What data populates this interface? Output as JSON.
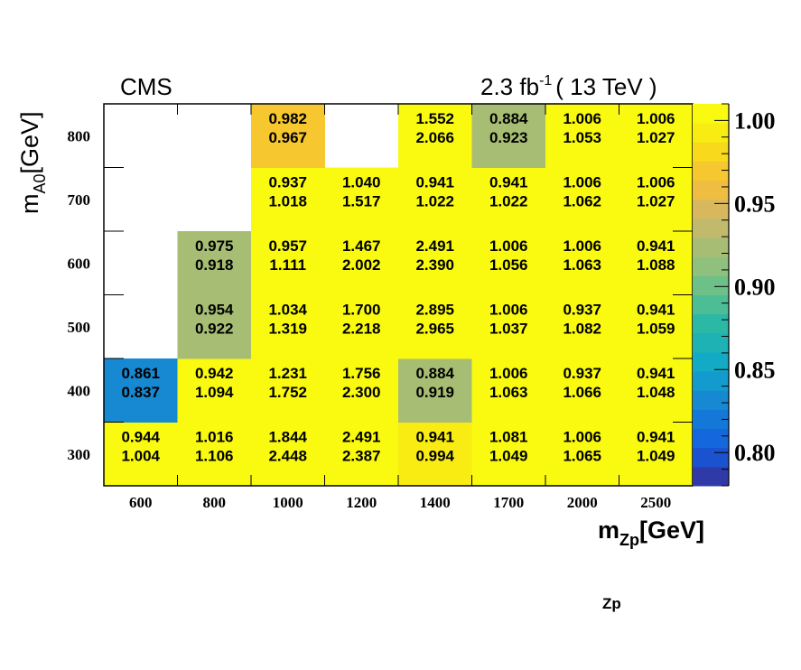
{
  "header": {
    "experiment": "CMS",
    "lumi_prefix": "2.3 fb",
    "lumi_exp": "-1",
    "lumi_suffix": "( 13 TeV )"
  },
  "chart_data": {
    "type": "heatmap",
    "xlabel_main": "m",
    "xlabel_sub": "Zp",
    "xlabel_tail": "[GeV]",
    "ylabel_main": "m",
    "ylabel_sub": "A0",
    "ylabel_tail": "[GeV]",
    "x_categories": [
      "600",
      "800",
      "1000",
      "1200",
      "1400",
      "1700",
      "2000",
      "2500"
    ],
    "y_categories": [
      "300",
      "400",
      "500",
      "600",
      "700",
      "800"
    ],
    "zlim": [
      0.78,
      1.01
    ],
    "colorbar_ticks": [
      "0.80",
      "0.85",
      "0.90",
      "0.95",
      "1.00"
    ],
    "cells": [
      {
        "x": "600",
        "y": "300",
        "top": "0.944",
        "bottom": "1.004",
        "z": 1.004
      },
      {
        "x": "800",
        "y": "300",
        "top": "1.016",
        "bottom": "1.106",
        "z": 1.106
      },
      {
        "x": "1000",
        "y": "300",
        "top": "1.844",
        "bottom": "2.448",
        "z": 2.448
      },
      {
        "x": "1200",
        "y": "300",
        "top": "2.491",
        "bottom": "2.387",
        "z": 2.387
      },
      {
        "x": "1400",
        "y": "300",
        "top": "0.941",
        "bottom": "0.994",
        "z": 0.994
      },
      {
        "x": "1700",
        "y": "300",
        "top": "1.081",
        "bottom": "1.049",
        "z": 1.049
      },
      {
        "x": "2000",
        "y": "300",
        "top": "1.006",
        "bottom": "1.065",
        "z": 1.065
      },
      {
        "x": "2500",
        "y": "300",
        "top": "0.941",
        "bottom": "1.049",
        "z": 1.049
      },
      {
        "x": "600",
        "y": "400",
        "top": "0.861",
        "bottom": "0.837",
        "z": 0.837
      },
      {
        "x": "800",
        "y": "400",
        "top": "0.942",
        "bottom": "1.094",
        "z": 1.094
      },
      {
        "x": "1000",
        "y": "400",
        "top": "1.231",
        "bottom": "1.752",
        "z": 1.752
      },
      {
        "x": "1200",
        "y": "400",
        "top": "1.756",
        "bottom": "2.300",
        "z": 2.3
      },
      {
        "x": "1400",
        "y": "400",
        "top": "0.884",
        "bottom": "0.919",
        "z": 0.919
      },
      {
        "x": "1700",
        "y": "400",
        "top": "1.006",
        "bottom": "1.063",
        "z": 1.063
      },
      {
        "x": "2000",
        "y": "400",
        "top": "0.937",
        "bottom": "1.066",
        "z": 1.066
      },
      {
        "x": "2500",
        "y": "400",
        "top": "0.941",
        "bottom": "1.048",
        "z": 1.048
      },
      {
        "x": "800",
        "y": "500",
        "top": "0.954",
        "bottom": "0.922",
        "z": 0.922
      },
      {
        "x": "1000",
        "y": "500",
        "top": "1.034",
        "bottom": "1.319",
        "z": 1.319
      },
      {
        "x": "1200",
        "y": "500",
        "top": "1.700",
        "bottom": "2.218",
        "z": 2.218
      },
      {
        "x": "1400",
        "y": "500",
        "top": "2.895",
        "bottom": "2.965",
        "z": 2.965
      },
      {
        "x": "1700",
        "y": "500",
        "top": "1.006",
        "bottom": "1.037",
        "z": 1.037
      },
      {
        "x": "2000",
        "y": "500",
        "top": "0.937",
        "bottom": "1.082",
        "z": 1.082
      },
      {
        "x": "2500",
        "y": "500",
        "top": "0.941",
        "bottom": "1.059",
        "z": 1.059
      },
      {
        "x": "800",
        "y": "600",
        "top": "0.975",
        "bottom": "0.918",
        "z": 0.918
      },
      {
        "x": "1000",
        "y": "600",
        "top": "0.957",
        "bottom": "1.111",
        "z": 1.111
      },
      {
        "x": "1200",
        "y": "600",
        "top": "1.467",
        "bottom": "2.002",
        "z": 2.002
      },
      {
        "x": "1400",
        "y": "600",
        "top": "2.491",
        "bottom": "2.390",
        "z": 2.39
      },
      {
        "x": "1700",
        "y": "600",
        "top": "1.006",
        "bottom": "1.056",
        "z": 1.056
      },
      {
        "x": "2000",
        "y": "600",
        "top": "1.006",
        "bottom": "1.063",
        "z": 1.063
      },
      {
        "x": "2500",
        "y": "600",
        "top": "0.941",
        "bottom": "1.088",
        "z": 1.088
      },
      {
        "x": "1000",
        "y": "700",
        "top": "0.937",
        "bottom": "1.018",
        "z": 1.018
      },
      {
        "x": "1200",
        "y": "700",
        "top": "1.040",
        "bottom": "1.517",
        "z": 1.517
      },
      {
        "x": "1400",
        "y": "700",
        "top": "0.941",
        "bottom": "1.022",
        "z": 1.022
      },
      {
        "x": "1700",
        "y": "700",
        "top": "0.941",
        "bottom": "1.022",
        "z": 1.022
      },
      {
        "x": "2000",
        "y": "700",
        "top": "1.006",
        "bottom": "1.062",
        "z": 1.062
      },
      {
        "x": "2500",
        "y": "700",
        "top": "1.006",
        "bottom": "1.027",
        "z": 1.027
      },
      {
        "x": "1000",
        "y": "800",
        "top": "0.982",
        "bottom": "0.967",
        "z": 0.967
      },
      {
        "x": "1400",
        "y": "800",
        "top": "1.552",
        "bottom": "2.066",
        "z": 2.066
      },
      {
        "x": "1700",
        "y": "800",
        "top": "0.884",
        "bottom": "0.923",
        "z": 0.923
      },
      {
        "x": "2000",
        "y": "800",
        "top": "1.006",
        "bottom": "1.053",
        "z": 1.053
      },
      {
        "x": "2500",
        "y": "800",
        "top": "1.006",
        "bottom": "1.027",
        "z": 1.027
      }
    ],
    "palette": [
      "#2f3aa8",
      "#1b52cf",
      "#1467dc",
      "#1478d8",
      "#1689d2",
      "#129bcc",
      "#12aac4",
      "#1eb2b4",
      "#2bb8a5",
      "#4dbd96",
      "#6ec089",
      "#8fc07e",
      "#a8bd74",
      "#c1b96b",
      "#d8b85f",
      "#eebd42",
      "#f6c72e",
      "#f9d91b",
      "#f8ec13",
      "#f9fa0f"
    ]
  },
  "extra": {
    "stray_text": "Zp"
  }
}
